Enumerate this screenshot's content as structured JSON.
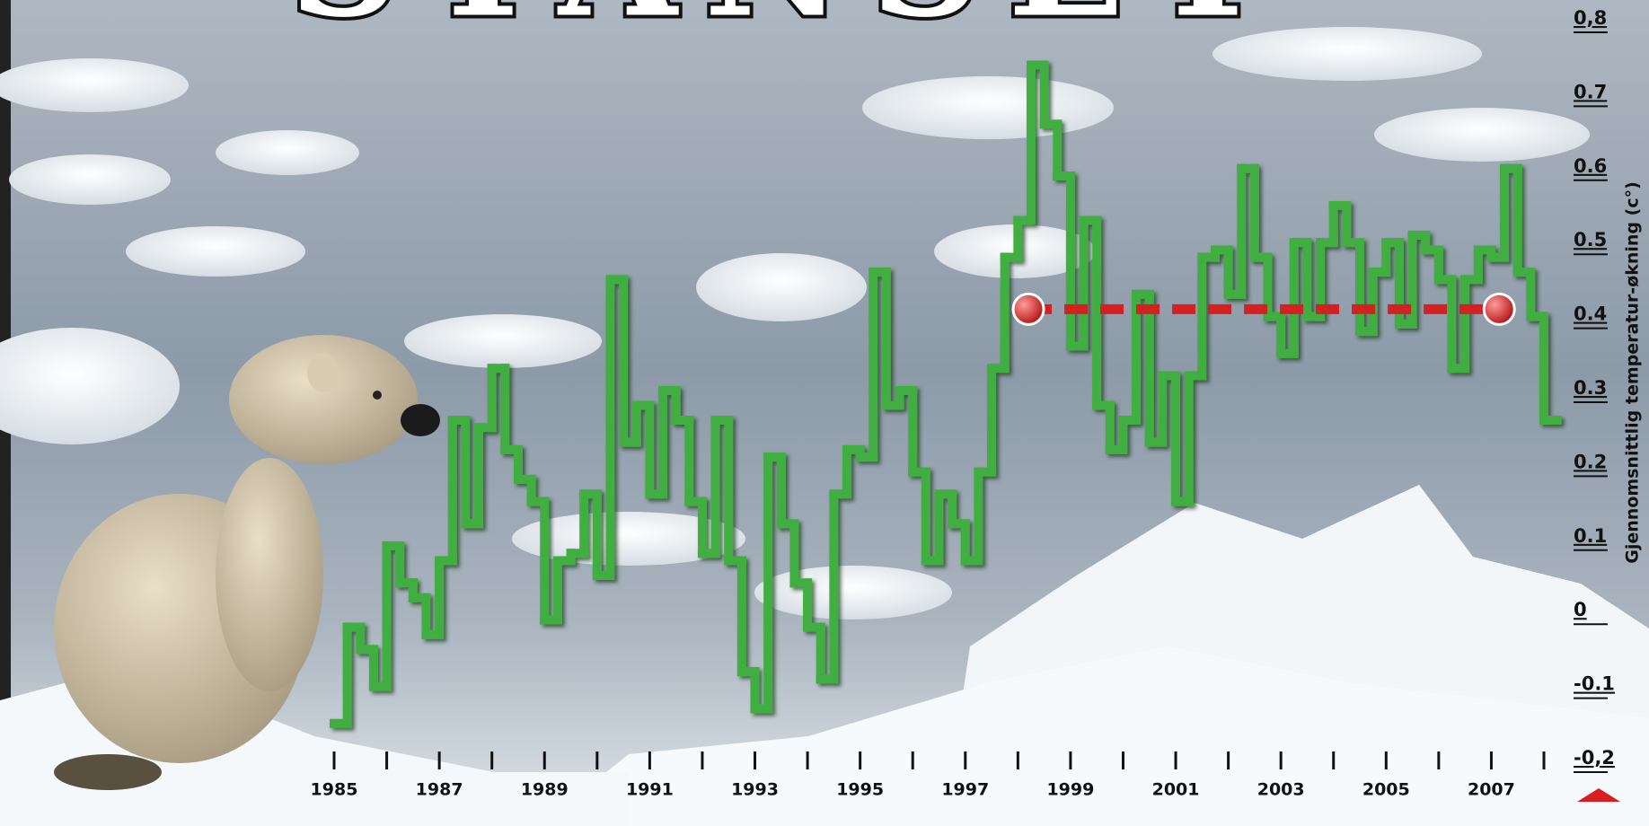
{
  "chart_data": {
    "type": "line",
    "title": "STANSET",
    "y_label": "Gjennomsnittlig temperatur-økning (c°)",
    "x": [
      1985,
      1985.25,
      1985.5,
      1985.75,
      1986,
      1986.25,
      1986.5,
      1986.75,
      1987,
      1987.25,
      1987.5,
      1987.75,
      1988,
      1988.25,
      1988.5,
      1988.75,
      1989,
      1989.25,
      1989.5,
      1989.75,
      1990,
      1990.25,
      1990.5,
      1990.75,
      1991,
      1991.25,
      1991.5,
      1991.75,
      1992,
      1992.25,
      1992.5,
      1992.75,
      1993,
      1993.25,
      1993.5,
      1993.75,
      1994,
      1994.25,
      1994.5,
      1994.75,
      1995,
      1995.25,
      1995.5,
      1995.75,
      1996,
      1996.25,
      1996.5,
      1996.75,
      1997,
      1997.25,
      1997.5,
      1997.75,
      1998,
      1998.25,
      1998.5,
      1998.75,
      1999,
      1999.25,
      1999.5,
      1999.75,
      2000,
      2000.25,
      2000.5,
      2000.75,
      2001,
      2001.25,
      2001.5,
      2001.75,
      2002,
      2002.25,
      2002.5,
      2002.75,
      2003,
      2003.25,
      2003.5,
      2003.75,
      2004,
      2004.25,
      2004.5,
      2004.75,
      2005,
      2005.25,
      2005.5,
      2005.75,
      2006,
      2006.25,
      2006.5,
      2006.75,
      2007,
      2007.25,
      2007.5,
      2007.75,
      2008
    ],
    "series": [
      {
        "color": "#3fae3f",
        "values": [
          -0.15,
          -0.02,
          -0.05,
          -0.1,
          0.09,
          0.04,
          0.02,
          -0.03,
          0.07,
          0.26,
          0.12,
          0.25,
          0.33,
          0.22,
          0.18,
          0.15,
          -0.01,
          0.07,
          0.08,
          0.16,
          0.05,
          0.45,
          0.23,
          0.28,
          0.16,
          0.3,
          0.26,
          0.15,
          0.08,
          0.26,
          0.07,
          -0.08,
          -0.13,
          0.21,
          0.12,
          0.04,
          -0.02,
          -0.09,
          0.16,
          0.22,
          0.21,
          0.46,
          0.28,
          0.3,
          0.19,
          0.07,
          0.16,
          0.12,
          0.07,
          0.19,
          0.33,
          0.48,
          0.53,
          0.74,
          0.66,
          0.59,
          0.36,
          0.53,
          0.28,
          0.22,
          0.26,
          0.43,
          0.23,
          0.32,
          0.15,
          0.32,
          0.48,
          0.49,
          0.43,
          0.6,
          0.48,
          0.4,
          0.35,
          0.5,
          0.4,
          0.5,
          0.55,
          0.5,
          0.38,
          0.46,
          0.5,
          0.39,
          0.51,
          0.49,
          0.45,
          0.33,
          0.45,
          0.49,
          0.48,
          0.6,
          0.46,
          0.4,
          0.26
        ]
      }
    ],
    "reference_line": {
      "x": [
        1998.2,
        2007.15
      ],
      "y": 0.41,
      "color": "#d42020"
    },
    "xlim": [
      1985,
      2008
    ],
    "xticks": [
      1985,
      1987,
      1989,
      1991,
      1993,
      1995,
      1997,
      1999,
      2001,
      2003,
      2005,
      2007
    ],
    "xminor_ticks": [
      1986,
      1988,
      1990,
      1992,
      1994,
      1996,
      1998,
      2000,
      2002,
      2004,
      2006,
      2008
    ],
    "ylim": [
      -0.2,
      0.8
    ],
    "yticks": [
      {
        "value": 0.8,
        "label": "0,8"
      },
      0.7,
      0.6,
      0.5,
      0.4,
      0.3,
      0.2,
      0.1,
      0,
      -0.1,
      {
        "value": -0.2,
        "label": "-0,2"
      }
    ]
  }
}
